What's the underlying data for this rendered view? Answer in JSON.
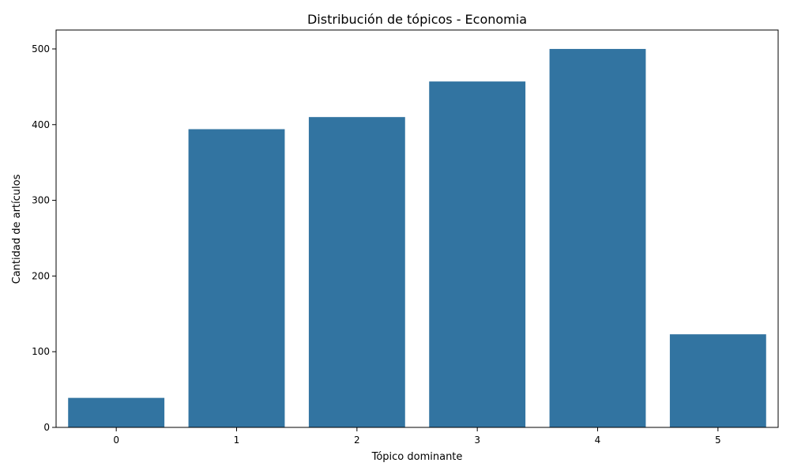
{
  "chart_data": {
    "type": "bar",
    "title": "Distribución de tópicos - Economia",
    "xlabel": "Tópico dominante",
    "ylabel": "Cantidad de artículos",
    "categories": [
      "0",
      "1",
      "2",
      "3",
      "4",
      "5"
    ],
    "values": [
      39,
      394,
      410,
      457,
      500,
      123
    ],
    "ylim": [
      0,
      525
    ],
    "yticks": [
      0,
      100,
      200,
      300,
      400,
      500
    ],
    "grid": false,
    "legend": "none",
    "bar_color": "#3274a1"
  }
}
